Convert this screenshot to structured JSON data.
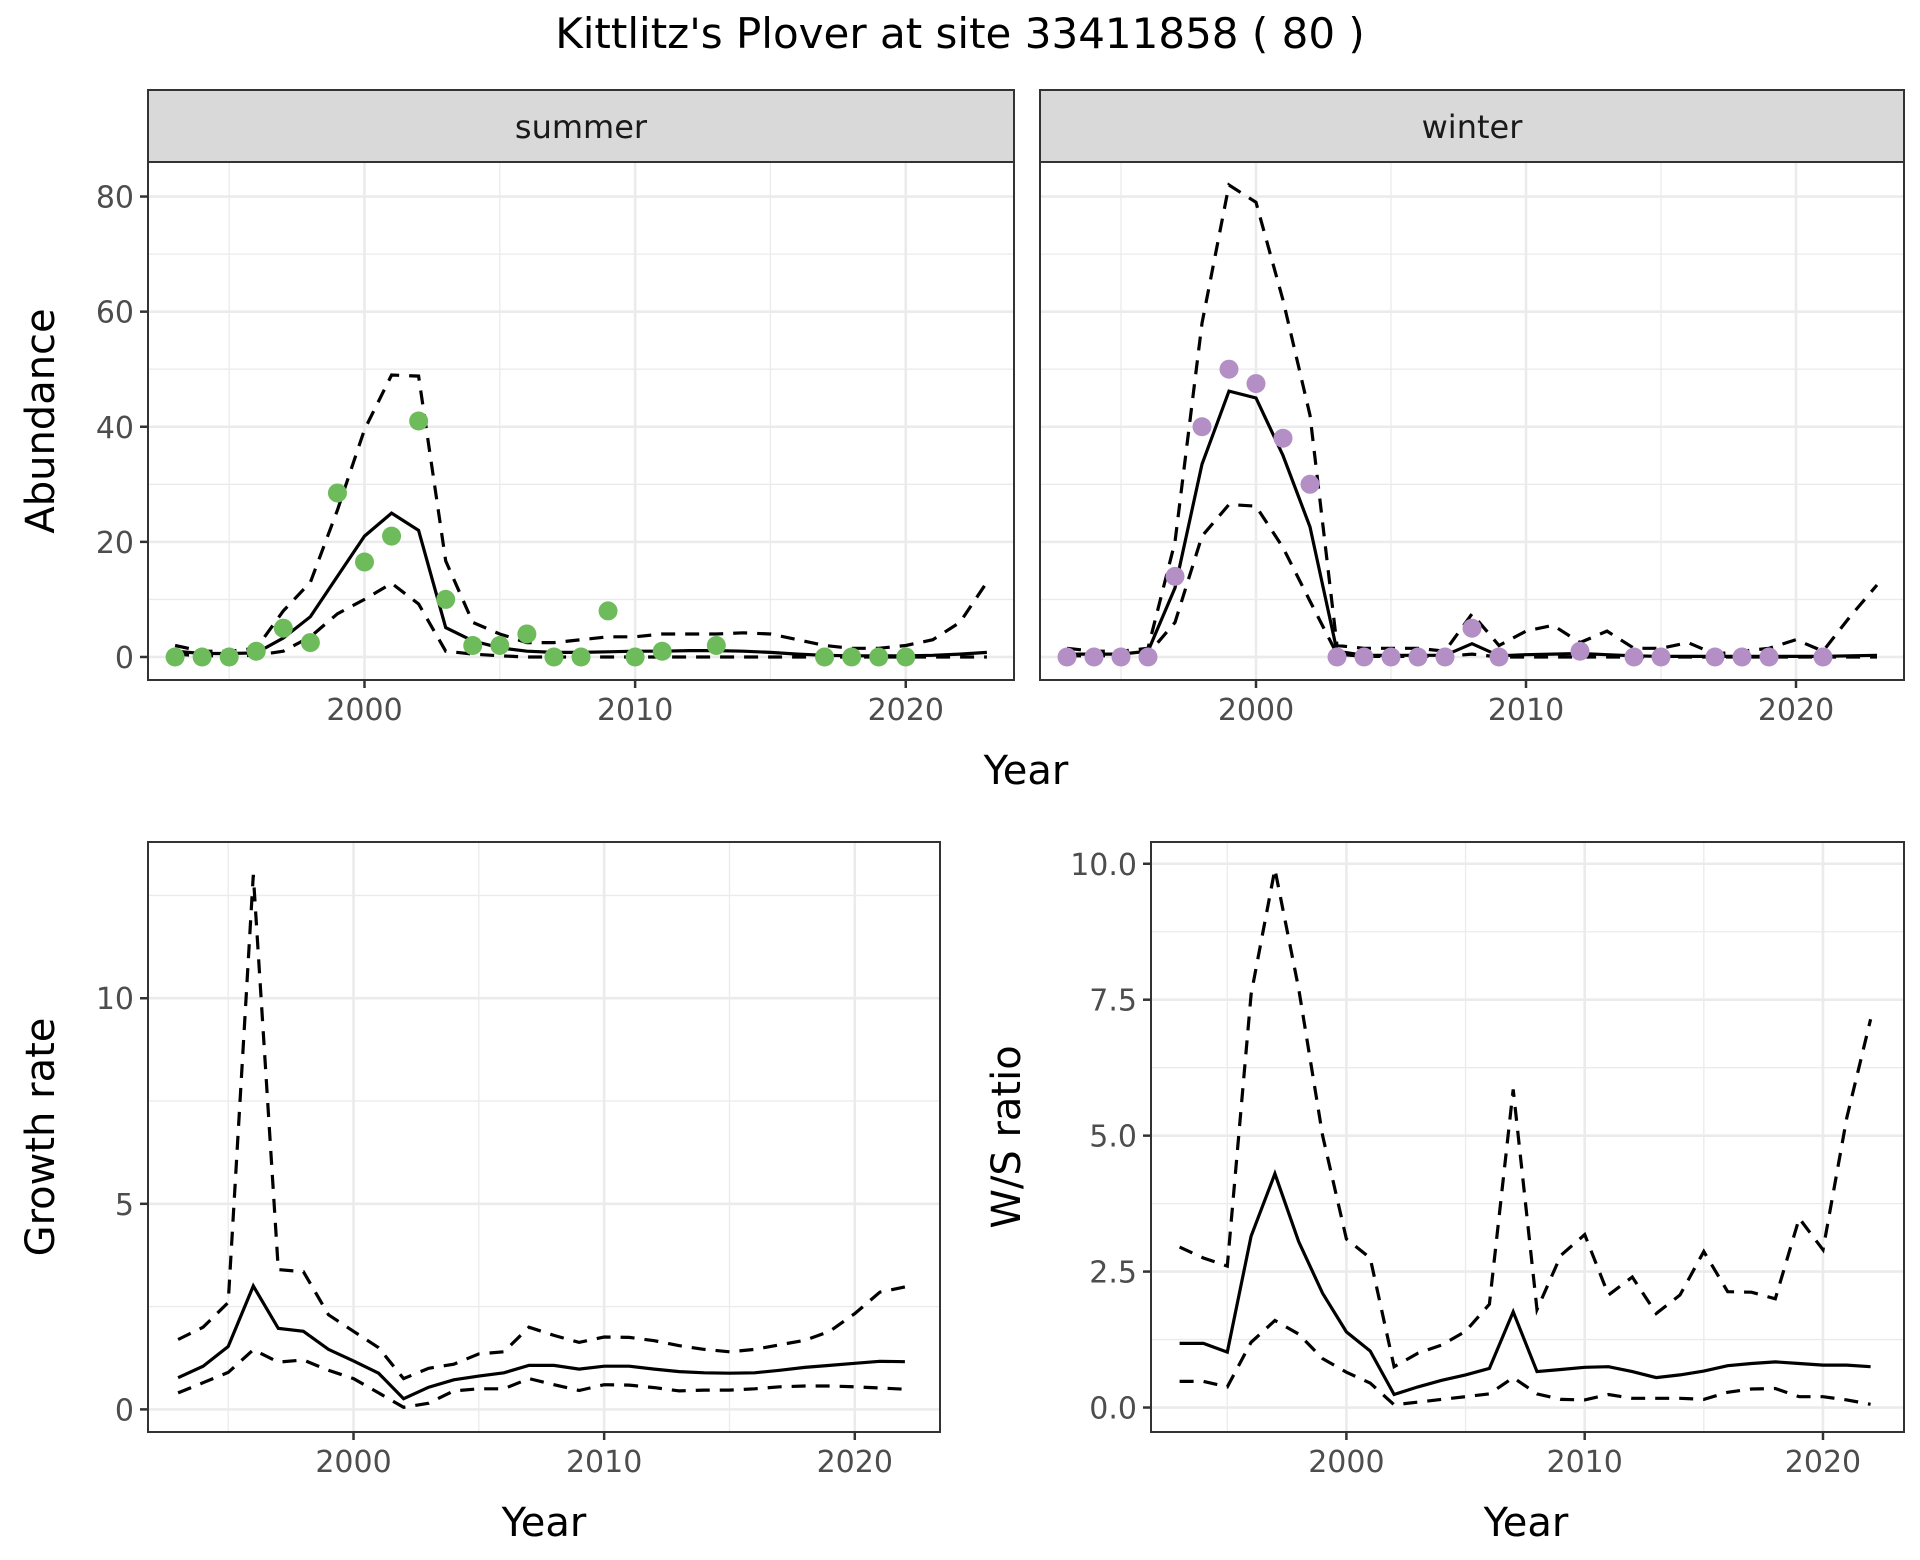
{
  "chart_data": {
    "title": "Kittlitz's Plover at site 33411858 ( 80 )",
    "legend": "none",
    "grid": true,
    "panels": [
      {
        "id": "abundance",
        "type": "line",
        "facets": [
          "summer",
          "winter"
        ],
        "xlabel": "Year",
        "ylabel": "Abundance",
        "xlim": [
          1992,
          2024
        ],
        "ylim": [
          -4,
          86
        ],
        "xticks": [
          2000,
          2010,
          2020
        ],
        "yticks": [
          0,
          20,
          40,
          60,
          80
        ],
        "series": {
          "summer": {
            "point_color": "#6dbb5b",
            "points": {
              "x": [
                1993,
                1994,
                1995,
                1996,
                1997,
                1998,
                1999,
                2000,
                2001,
                2002,
                2003,
                2004,
                2005,
                2006,
                2007,
                2008,
                2009,
                2010,
                2011,
                2013,
                2017,
                2018,
                2019,
                2020
              ],
              "y": [
                0,
                0,
                0,
                1,
                5,
                2.5,
                28.5,
                16.5,
                21,
                41,
                10,
                2,
                2,
                4,
                0,
                0,
                8,
                0,
                1,
                2,
                0,
                0,
                0,
                0
              ]
            },
            "x": [
              1993,
              1994,
              1995,
              1996,
              1997,
              1998,
              1999,
              2000,
              2001,
              2002,
              2003,
              2004,
              2005,
              2006,
              2007,
              2008,
              2009,
              2010,
              2011,
              2012,
              2013,
              2014,
              2015,
              2016,
              2017,
              2018,
              2019,
              2020,
              2021,
              2022,
              2023
            ],
            "mean": [
              1,
              0.6,
              0.6,
              0.7,
              3.3,
              7,
              14,
              21,
              25,
              22,
              5.1,
              2.8,
              1.6,
              1,
              0.8,
              0.8,
              0.9,
              1,
              1,
              1.1,
              1.1,
              1,
              0.8,
              0.5,
              0.3,
              0.2,
              0.2,
              0.2,
              0.3,
              0.5,
              0.8
            ],
            "upper": [
              2,
              1,
              1,
              1.5,
              8,
              13,
              25.5,
              39.5,
              49,
              48.8,
              16.7,
              6,
              4,
              2.5,
              2.5,
              3,
              3.5,
              3.5,
              4,
              4,
              4,
              4.2,
              4,
              3,
              2,
              1.5,
              1.5,
              2,
              3,
              6,
              13
            ],
            "lower": [
              0.5,
              0.2,
              0.2,
              0.3,
              1,
              3.5,
              7.5,
              10,
              12.8,
              9.2,
              1,
              0.5,
              0.2,
              0,
              0,
              0,
              0,
              0,
              0,
              0,
              0,
              0,
              0,
              0,
              0,
              0,
              0,
              0,
              0,
              0,
              0
            ]
          },
          "winter": {
            "point_color": "#b38fc6",
            "points": {
              "x": [
                1993,
                1994,
                1995,
                1996,
                1997,
                1998,
                1999,
                2000,
                2001,
                2002,
                2003,
                2004,
                2005,
                2006,
                2007,
                2008,
                2009,
                2012,
                2014,
                2015,
                2017,
                2018,
                2019,
                2021
              ],
              "y": [
                0,
                0,
                0,
                0,
                14,
                40,
                50,
                47.5,
                38,
                30,
                0,
                0,
                0,
                0,
                0,
                5,
                0,
                1,
                0,
                0,
                0,
                0,
                0,
                0
              ]
            },
            "x": [
              1993,
              1994,
              1995,
              1996,
              1997,
              1998,
              1999,
              2000,
              2001,
              2002,
              2003,
              2004,
              2005,
              2006,
              2007,
              2008,
              2009,
              2010,
              2011,
              2012,
              2013,
              2014,
              2015,
              2016,
              2017,
              2018,
              2019,
              2020,
              2021,
              2022,
              2023
            ],
            "mean": [
              0.5,
              0.5,
              0.5,
              1,
              12,
              33.5,
              46.2,
              45,
              35,
              22.6,
              1,
              0.3,
              0.3,
              0.3,
              0.3,
              2.3,
              0.2,
              0.4,
              0.5,
              0.6,
              0.4,
              0.2,
              0.1,
              0.1,
              0.1,
              0.1,
              0.1,
              0.1,
              0.1,
              0.2,
              0.3
            ],
            "upper": [
              1.5,
              1,
              1,
              1.5,
              20,
              58,
              82,
              79,
              62,
              42,
              2,
              1.5,
              1.5,
              1.5,
              1,
              7.5,
              2,
              4.5,
              5.5,
              2.5,
              4.5,
              1.5,
              1.5,
              2.5,
              0.5,
              1,
              1.5,
              3,
              1,
              7,
              12.5
            ],
            "lower": [
              0.2,
              0.2,
              0.2,
              0.5,
              6,
              21,
              26.5,
              26.2,
              19,
              9.7,
              0.5,
              0.1,
              0.1,
              0.1,
              0.1,
              0.5,
              0,
              0,
              0,
              0,
              0,
              0,
              0,
              0,
              0,
              0,
              0,
              0,
              0,
              0,
              0
            ]
          }
        }
      },
      {
        "id": "growth-rate",
        "type": "line",
        "xlabel": "Year",
        "ylabel": "Growth rate",
        "xlim": [
          1991.8,
          2023.4
        ],
        "ylim": [
          -0.55,
          13.8
        ],
        "xticks": [
          2000,
          2010,
          2020
        ],
        "yticks": [
          0,
          5,
          10
        ],
        "x": [
          1993,
          1994,
          1995,
          1996,
          1997,
          1998,
          1999,
          2000,
          2001,
          2002,
          2003,
          2004,
          2005,
          2006,
          2007,
          2008,
          2009,
          2010,
          2011,
          2012,
          2013,
          2014,
          2015,
          2016,
          2017,
          2018,
          2019,
          2020,
          2021,
          2022
        ],
        "mean": [
          0.77,
          1.05,
          1.53,
          3.0,
          1.97,
          1.9,
          1.46,
          1.18,
          0.88,
          0.26,
          0.54,
          0.72,
          0.81,
          0.89,
          1.07,
          1.07,
          0.98,
          1.05,
          1.05,
          0.98,
          0.92,
          0.89,
          0.88,
          0.89,
          0.95,
          1.02,
          1.07,
          1.12,
          1.17,
          1.16
        ],
        "upper": [
          1.7,
          2.0,
          2.6,
          13.0,
          3.4,
          3.35,
          2.3,
          1.9,
          1.5,
          0.75,
          1.0,
          1.1,
          1.35,
          1.4,
          2.0,
          1.8,
          1.63,
          1.76,
          1.75,
          1.67,
          1.55,
          1.46,
          1.4,
          1.46,
          1.57,
          1.68,
          1.9,
          2.33,
          2.85,
          2.98
        ],
        "lower": [
          0.4,
          0.65,
          0.9,
          1.45,
          1.15,
          1.2,
          0.95,
          0.75,
          0.4,
          0.05,
          0.15,
          0.45,
          0.5,
          0.5,
          0.75,
          0.6,
          0.46,
          0.6,
          0.59,
          0.53,
          0.45,
          0.47,
          0.47,
          0.5,
          0.55,
          0.57,
          0.57,
          0.55,
          0.52,
          0.49
        ]
      },
      {
        "id": "ws-ratio",
        "type": "line",
        "xlabel": "Year",
        "ylabel": "W/S ratio",
        "xlim": [
          1991.8,
          2023.4
        ],
        "ylim": [
          -0.45,
          10.4
        ],
        "xticks": [
          2000,
          2010,
          2020
        ],
        "yticks": [
          0.0,
          2.5,
          5.0,
          7.5,
          10.0
        ],
        "ytick_labels": [
          "0.0",
          "2.5",
          "5.0",
          "7.5",
          "10.0"
        ],
        "x": [
          1993,
          1994,
          1995,
          1996,
          1997,
          1998,
          1999,
          2000,
          2001,
          2002,
          2003,
          2004,
          2005,
          2006,
          2007,
          2008,
          2009,
          2010,
          2011,
          2012,
          2013,
          2014,
          2015,
          2016,
          2017,
          2018,
          2019,
          2020,
          2021,
          2022
        ],
        "mean": [
          1.18,
          1.18,
          1.02,
          3.15,
          4.3,
          3.05,
          2.1,
          1.39,
          1.04,
          0.24,
          0.38,
          0.5,
          0.6,
          0.72,
          1.76,
          0.66,
          0.7,
          0.74,
          0.75,
          0.66,
          0.55,
          0.6,
          0.67,
          0.77,
          0.81,
          0.84,
          0.81,
          0.78,
          0.78,
          0.75
        ],
        "upper": [
          2.95,
          2.75,
          2.6,
          7.6,
          9.9,
          7.7,
          5.0,
          3.1,
          2.75,
          0.75,
          1.0,
          1.15,
          1.4,
          1.9,
          5.85,
          1.8,
          2.8,
          3.18,
          2.07,
          2.4,
          1.73,
          2.07,
          2.87,
          2.13,
          2.12,
          2.0,
          3.48,
          2.9,
          5.33,
          7.14
        ],
        "lower": [
          0.48,
          0.48,
          0.38,
          1.2,
          1.6,
          1.35,
          0.9,
          0.65,
          0.45,
          0.05,
          0.1,
          0.15,
          0.2,
          0.25,
          0.55,
          0.25,
          0.15,
          0.14,
          0.24,
          0.17,
          0.17,
          0.17,
          0.15,
          0.28,
          0.34,
          0.35,
          0.2,
          0.2,
          0.14,
          0.06
        ]
      }
    ]
  }
}
